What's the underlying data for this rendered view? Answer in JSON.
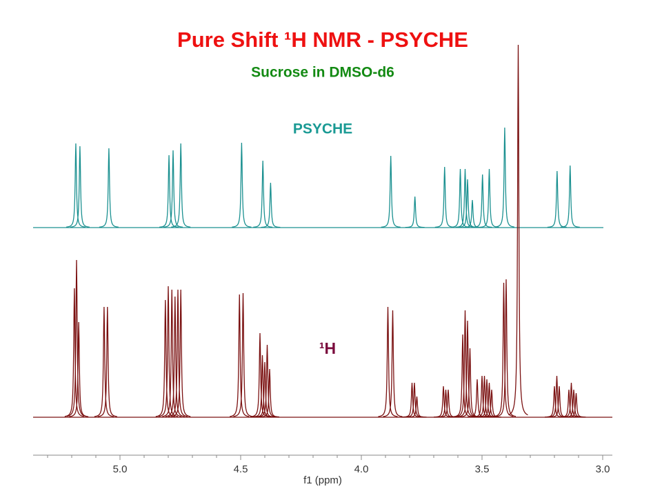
{
  "chart_data": {
    "type": "nmr",
    "title": "Pure Shift ¹H NMR - PSYCHE",
    "subtitle": "Sucrose in DMSO-d6",
    "xlabel": "f1 (ppm)",
    "xlim": [
      5.36,
      2.96
    ],
    "xticks": [
      {
        "value": 5.0,
        "label": "5.0"
      },
      {
        "value": 4.5,
        "label": "4.5"
      },
      {
        "value": 4.0,
        "label": "4.0"
      },
      {
        "value": 3.5,
        "label": "3.5"
      },
      {
        "value": 3.0,
        "label": "3.0"
      }
    ],
    "series": [
      {
        "name": "PSYCHE",
        "color": "#1a9090",
        "x": [
          5.183,
          5.166,
          5.046,
          4.797,
          4.78,
          4.748,
          4.496,
          4.408,
          4.376,
          3.878,
          3.778,
          3.655,
          3.59,
          3.57,
          3.56,
          3.54,
          3.498,
          3.47,
          3.406,
          3.189,
          3.135
        ],
        "values": [
          122,
          118,
          115,
          105,
          112,
          122,
          123,
          97,
          65,
          104,
          45,
          88,
          85,
          85,
          70,
          40,
          77,
          85,
          145,
          82,
          90
        ]
      },
      {
        "name": "¹H",
        "color": "#7a1010",
        "x": [
          5.189,
          5.18,
          5.171,
          5.066,
          5.052,
          4.812,
          4.8,
          4.785,
          4.772,
          4.76,
          4.748,
          4.505,
          4.49,
          4.42,
          4.41,
          4.4,
          4.39,
          4.38,
          3.89,
          3.87,
          3.79,
          3.78,
          3.77,
          3.66,
          3.65,
          3.64,
          3.58,
          3.57,
          3.56,
          3.55,
          3.52,
          3.5,
          3.49,
          3.48,
          3.47,
          3.46,
          3.41,
          3.4,
          3.35,
          3.2,
          3.19,
          3.18,
          3.14,
          3.13,
          3.12,
          3.11
        ],
        "values": [
          187,
          228,
          138,
          160,
          160,
          170,
          190,
          185,
          175,
          185,
          185,
          178,
          180,
          122,
          90,
          80,
          105,
          70,
          160,
          155,
          50,
          50,
          30,
          45,
          40,
          40,
          120,
          155,
          140,
          100,
          55,
          60,
          60,
          55,
          50,
          40,
          195,
          200,
          540,
          45,
          60,
          45,
          40,
          50,
          40,
          35
        ]
      }
    ]
  }
}
